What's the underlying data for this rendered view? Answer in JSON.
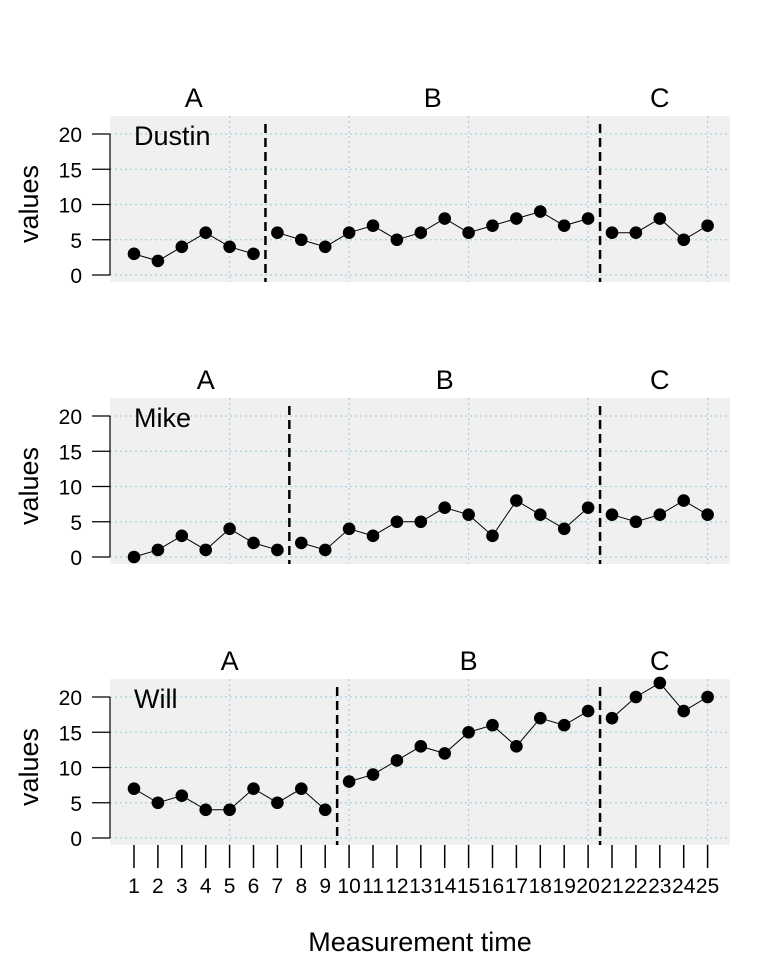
{
  "chart_data": {
    "type": "line",
    "xlabel": "Measurement time",
    "ylabel": "values",
    "x": [
      1,
      2,
      3,
      4,
      5,
      6,
      7,
      8,
      9,
      10,
      11,
      12,
      13,
      14,
      15,
      16,
      17,
      18,
      19,
      20,
      21,
      22,
      23,
      24,
      25
    ],
    "ylim": [
      0,
      22
    ],
    "yticks": [
      0,
      5,
      10,
      15,
      20
    ],
    "grid": true,
    "panels": [
      {
        "case": "Dustin",
        "phases": [
          {
            "label": "A",
            "start": 1,
            "end": 6
          },
          {
            "label": "B",
            "start": 7,
            "end": 20
          },
          {
            "label": "C",
            "start": 21,
            "end": 25
          }
        ],
        "values": [
          3,
          2,
          4,
          6,
          4,
          3,
          6,
          5,
          4,
          6,
          7,
          5,
          6,
          8,
          6,
          7,
          8,
          9,
          7,
          8,
          6,
          6,
          8,
          5,
          7
        ]
      },
      {
        "case": "Mike",
        "phases": [
          {
            "label": "A",
            "start": 1,
            "end": 7
          },
          {
            "label": "B",
            "start": 8,
            "end": 20
          },
          {
            "label": "C",
            "start": 21,
            "end": 25
          }
        ],
        "values": [
          0,
          1,
          3,
          1,
          4,
          2,
          1,
          2,
          1,
          4,
          3,
          5,
          5,
          7,
          6,
          3,
          8,
          6,
          4,
          7,
          6,
          5,
          6,
          8,
          6
        ]
      },
      {
        "case": "Will",
        "phases": [
          {
            "label": "A",
            "start": 1,
            "end": 9
          },
          {
            "label": "B",
            "start": 10,
            "end": 20
          },
          {
            "label": "C",
            "start": 21,
            "end": 25
          }
        ],
        "values": [
          7,
          5,
          6,
          4,
          4,
          7,
          5,
          7,
          4,
          8,
          9,
          11,
          13,
          12,
          15,
          16,
          13,
          17,
          16,
          18,
          17,
          20,
          22,
          18,
          20
        ]
      }
    ]
  }
}
